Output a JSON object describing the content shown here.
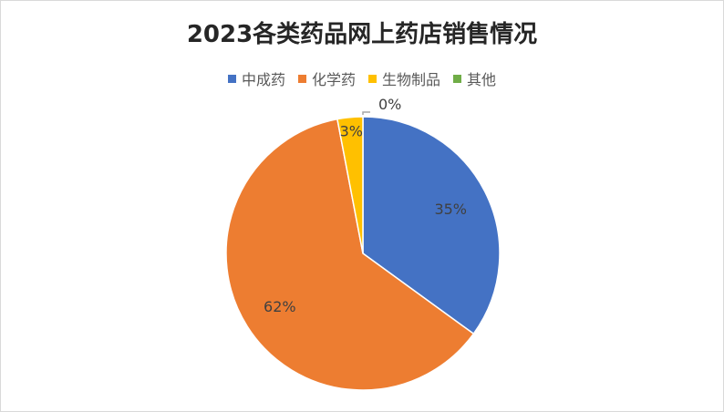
{
  "chart_data": {
    "type": "pie",
    "title": "2023各类药品网上药店销售情况",
    "legend_position": "top",
    "categories": [
      "中成药",
      "化学药",
      "生物制品",
      "其他"
    ],
    "values": [
      35,
      62,
      3,
      0
    ],
    "labels": [
      "35%",
      "62%",
      "3%",
      "0%"
    ],
    "colors": [
      "#4472C4",
      "#ED7D31",
      "#FFC000",
      "#70AD47"
    ]
  }
}
